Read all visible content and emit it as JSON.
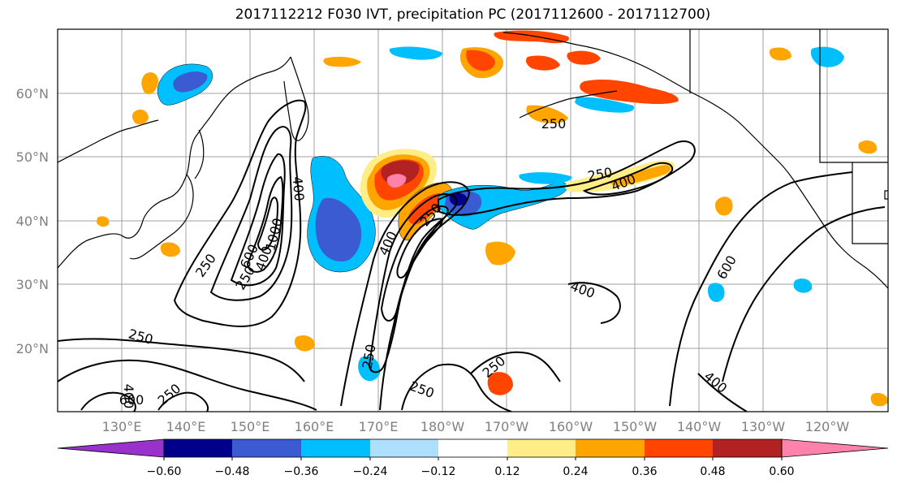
{
  "title": "2017112212 F030 IVT, precipitation PC (2017112600 - 2017112700)",
  "map": {
    "lat_labels": [
      "60°N",
      "50°N",
      "40°N",
      "30°N",
      "20°N"
    ],
    "lon_labels": [
      "130°E",
      "140°E",
      "150°E",
      "160°E",
      "170°E",
      "180°W",
      "170°W",
      "160°W",
      "150°W",
      "140°W",
      "130°W",
      "120°W"
    ],
    "contour_labels": [
      "250",
      "250",
      "400",
      "600",
      "1000",
      "400",
      "250",
      "400",
      "600",
      "250",
      "400",
      "250",
      "250",
      "250",
      "250",
      "250",
      "250",
      "400",
      "400",
      "600",
      "400"
    ]
  },
  "colorbar": {
    "tick_labels": [
      "−0.60",
      "−0.48",
      "−0.36",
      "−0.24",
      "−0.12",
      "0.12",
      "0.24",
      "0.36",
      "0.48",
      "0.60"
    ],
    "colors": [
      "#9932CC",
      "#00008B",
      "#3A5BD1",
      "#00BFFF",
      "#ADDFFF",
      "#FFFFFF",
      "#FFEE88",
      "#FFA500",
      "#FF4500",
      "#B22222",
      "#FF82AB"
    ]
  }
}
